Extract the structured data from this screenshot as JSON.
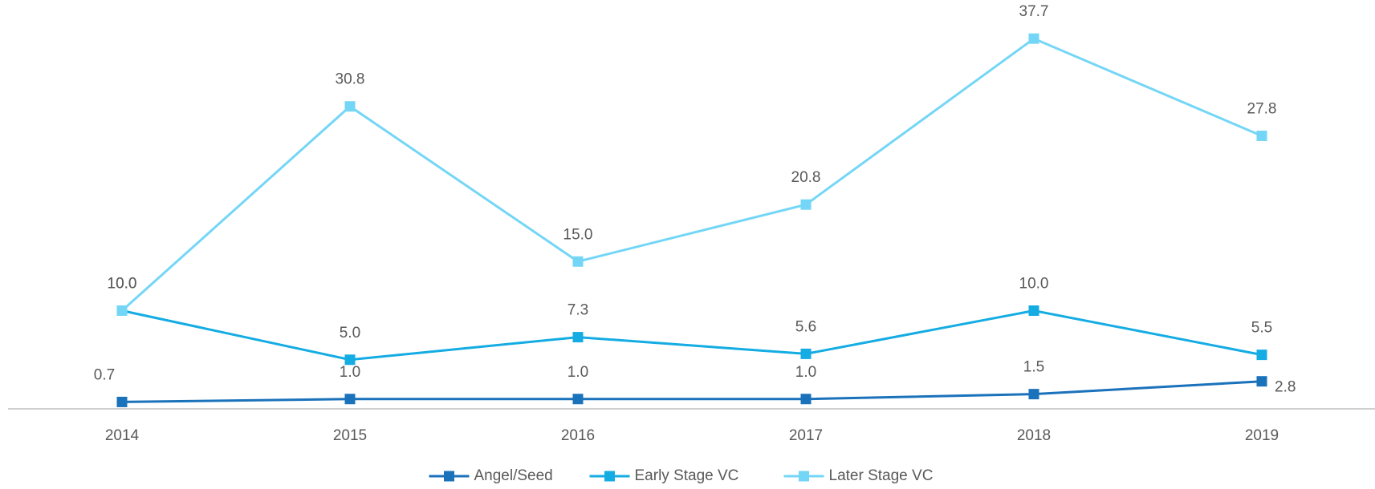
{
  "chart_data": {
    "type": "line",
    "categories": [
      "2014",
      "2015",
      "2016",
      "2017",
      "2018",
      "2019"
    ],
    "series": [
      {
        "name": "Angel/Seed",
        "color": "#1a72bb",
        "values": [
          0.7,
          1.0,
          1.0,
          1.0,
          1.5,
          2.8
        ],
        "value_labels": [
          "0.7",
          "1.0",
          "1.0",
          "1.0",
          "1.5",
          "2.8"
        ]
      },
      {
        "name": "Early Stage VC",
        "color": "#14ace3",
        "values": [
          10.0,
          5.0,
          7.3,
          5.6,
          10.0,
          5.5
        ],
        "value_labels": [
          "10.0",
          "5.0",
          "7.3",
          "5.6",
          "10.0",
          "5.5"
        ]
      },
      {
        "name": "Later Stage VC",
        "color": "#74d6f6",
        "values": [
          10.0,
          30.8,
          15.0,
          20.8,
          37.7,
          27.8
        ],
        "value_labels": [
          "10.0",
          "30.8",
          "15.0",
          "20.8",
          "37.7",
          "27.8"
        ]
      }
    ],
    "ylim": [
      0,
      40
    ],
    "legend": "bottom"
  }
}
